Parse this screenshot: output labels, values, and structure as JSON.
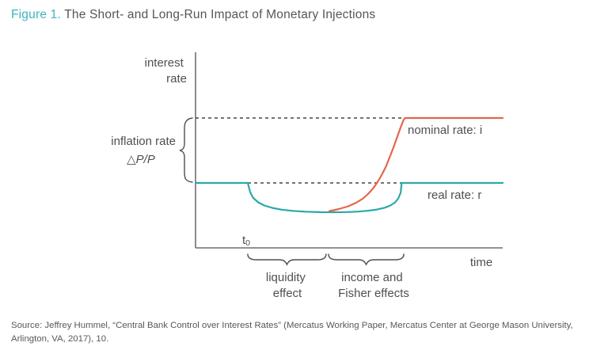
{
  "figure": {
    "label": "Figure 1.",
    "title": "The Short- and Long-Run Impact of Monetary Injections"
  },
  "colors": {
    "accent_teal": "#3CB4BF",
    "real_rate_teal": "#2AA8A8",
    "nominal_rate_orange": "#E2674B",
    "axis_gray": "#6E6F72",
    "text_gray": "#4E4F52"
  },
  "chart_data": {
    "type": "line",
    "title": "The Short- and Long-Run Impact of Monetary Injections",
    "xlabel": "time",
    "ylabel_line1": "interest",
    "ylabel_line2": "rate",
    "xlim": [
      0,
      10
    ],
    "ylim": [
      0,
      2.6
    ],
    "grid": false,
    "legend_position": "inline-right",
    "x_ticks": [
      {
        "t": 1.7,
        "base": "t",
        "sub": "0"
      }
    ],
    "levels": {
      "initial_rate": 1.0,
      "trough_real_rate": 0.55,
      "long_run_real_rate": 1.0,
      "long_run_nominal_rate": 2.0,
      "inflation_rate_gap": 1.0
    },
    "series": [
      {
        "id": "nominal",
        "name": "nominal rate: i",
        "color": "#E2674B",
        "points": [
          [
            4.36,
            0.567
          ],
          [
            4.66,
            0.598
          ],
          [
            4.97,
            0.64
          ],
          [
            5.23,
            0.695
          ],
          [
            5.46,
            0.762
          ],
          [
            5.64,
            0.841
          ],
          [
            5.8,
            0.927
          ],
          [
            5.93,
            1.018
          ],
          [
            6.06,
            1.122
          ],
          [
            6.19,
            1.244
          ],
          [
            6.31,
            1.384
          ],
          [
            6.44,
            1.543
          ],
          [
            6.57,
            1.713
          ],
          [
            6.68,
            1.86
          ],
          [
            6.77,
            1.97
          ],
          [
            6.82,
            2.0
          ],
          [
            10,
            2.0
          ]
        ]
      },
      {
        "id": "real",
        "name": "real rate: r",
        "color": "#2AA8A8",
        "points": [
          [
            0,
            1.0
          ],
          [
            1.7,
            1.0
          ],
          [
            1.78,
            0.854
          ],
          [
            1.88,
            0.768
          ],
          [
            2.04,
            0.701
          ],
          [
            2.24,
            0.652
          ],
          [
            2.5,
            0.616
          ],
          [
            2.81,
            0.588
          ],
          [
            3.17,
            0.57
          ],
          [
            3.58,
            0.557
          ],
          [
            4.05,
            0.55
          ],
          [
            4.51,
            0.549
          ],
          [
            4.92,
            0.551
          ],
          [
            5.28,
            0.559
          ],
          [
            5.59,
            0.571
          ],
          [
            5.9,
            0.59
          ],
          [
            6.16,
            0.618
          ],
          [
            6.34,
            0.652
          ],
          [
            6.5,
            0.701
          ],
          [
            6.6,
            0.762
          ],
          [
            6.68,
            0.854
          ],
          [
            6.71,
            1.0
          ],
          [
            10,
            1.0
          ]
        ]
      }
    ],
    "guides": [
      {
        "level": 2.0,
        "t_from": 0.0,
        "t_to": 6.82,
        "style": "dashed"
      },
      {
        "level": 1.0,
        "t_from": 1.7,
        "t_to": 6.71,
        "style": "dashed"
      }
    ],
    "phase_braces": [
      {
        "id": "liquidity",
        "label_line1": "liquidity",
        "label_line2": "effect",
        "t_from": 1.7,
        "t_to": 4.25
      },
      {
        "id": "income",
        "label_line1": "income and",
        "label_line2": "Fisher effects",
        "t_from": 4.33,
        "t_to": 6.78
      }
    ],
    "inflation_brace": {
      "label_line1": "inflation rate",
      "label_line2": "△P/P",
      "level_from": 1.0,
      "level_to": 2.0
    }
  },
  "source": {
    "line1": "Source: Jeffrey Hummel, “Central Bank Control over Interest Rates” (Mercatus Working Paper, Mercatus Center at George Mason University,",
    "line2": "Arlington, VA, 2017), 10."
  }
}
